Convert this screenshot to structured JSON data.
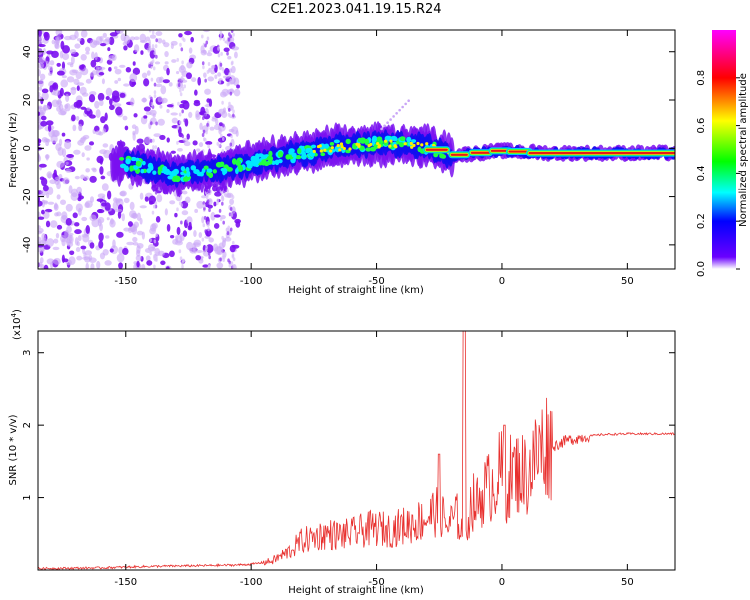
{
  "title": "C2E1.2023.041.19.15.R24",
  "colors": {
    "snr_line": "#e8302e",
    "axis": "#000000"
  },
  "chart_data": [
    {
      "type": "heatmap",
      "xlabel": "Height of straight line (km)",
      "ylabel": "Frequency (Hz)",
      "xlim": [
        -185,
        69
      ],
      "ylim": [
        -50,
        49
      ],
      "xticks": [
        -150,
        -100,
        -50,
        0,
        50
      ],
      "yticks": [
        -40,
        -20,
        0,
        20,
        40
      ],
      "colorbar": {
        "label": "Normalized spectral amplitude",
        "range": [
          0,
          1
        ],
        "ticks": [
          0.0,
          0.2,
          0.4,
          0.6,
          0.8
        ],
        "colormap": [
          "#ffffff",
          "#6a00ff",
          "#0000ff",
          "#00ffff",
          "#00ff00",
          "#ffff00",
          "#ff0000",
          "#ff00ff"
        ],
        "placement": "right"
      },
      "ridge": [
        {
          "x": -150,
          "y": -6
        },
        {
          "x": -130,
          "y": -11
        },
        {
          "x": -110,
          "y": -8
        },
        {
          "x": -90,
          "y": -4
        },
        {
          "x": -70,
          "y": 0
        },
        {
          "x": -50,
          "y": 2
        },
        {
          "x": -30,
          "y": 1
        },
        {
          "x": -20,
          "y": -3
        },
        {
          "x": -10,
          "y": -2
        },
        {
          "x": 0,
          "y": -1
        },
        {
          "x": 20,
          "y": -2
        },
        {
          "x": 69,
          "y": -2
        }
      ]
    },
    {
      "type": "line",
      "xlabel": "Height of straight line (km)",
      "ylabel": "SNR (10 * v/v)",
      "yunit_label": "(x10",
      "yunit_exp": "4",
      "yunit_close": ")",
      "xlim": [
        -185,
        69
      ],
      "ylim": [
        0,
        3.3
      ],
      "xticks": [
        -150,
        -100,
        -50,
        0,
        50
      ],
      "yticks": [
        1,
        2,
        3
      ],
      "series": [
        {
          "x": [
            -185,
            -160,
            -140,
            -120,
            -105,
            -100,
            -92,
            -85,
            -80,
            -75,
            -70,
            -65,
            -60,
            -55,
            -50,
            -45,
            -40,
            -35,
            -30,
            -25,
            -22,
            -18,
            -15,
            -12,
            -10,
            -7,
            -5,
            -3,
            0,
            1,
            3,
            5,
            8,
            10,
            12,
            15,
            18,
            20,
            25,
            30,
            35,
            40,
            50,
            60,
            69
          ],
          "y": [
            0.02,
            0.03,
            0.05,
            0.06,
            0.07,
            0.08,
            0.12,
            0.25,
            0.4,
            0.45,
            0.5,
            0.48,
            0.5,
            0.55,
            0.58,
            0.55,
            0.6,
            0.65,
            0.72,
            0.85,
            0.6,
            0.75,
            0.45,
            0.95,
            0.9,
            1.1,
            1.15,
            1.2,
            1.4,
            0.9,
            1.3,
            1.35,
            1.35,
            1.3,
            1.45,
            1.65,
            1.75,
            1.7,
            1.78,
            1.82,
            1.85,
            1.87,
            1.88,
            1.88,
            1.88
          ]
        }
      ],
      "spikes": [
        {
          "x": -25,
          "y": 1.6
        },
        {
          "x": -15,
          "y": 3.3
        },
        {
          "x": 1,
          "y": 2.0
        }
      ]
    }
  ]
}
